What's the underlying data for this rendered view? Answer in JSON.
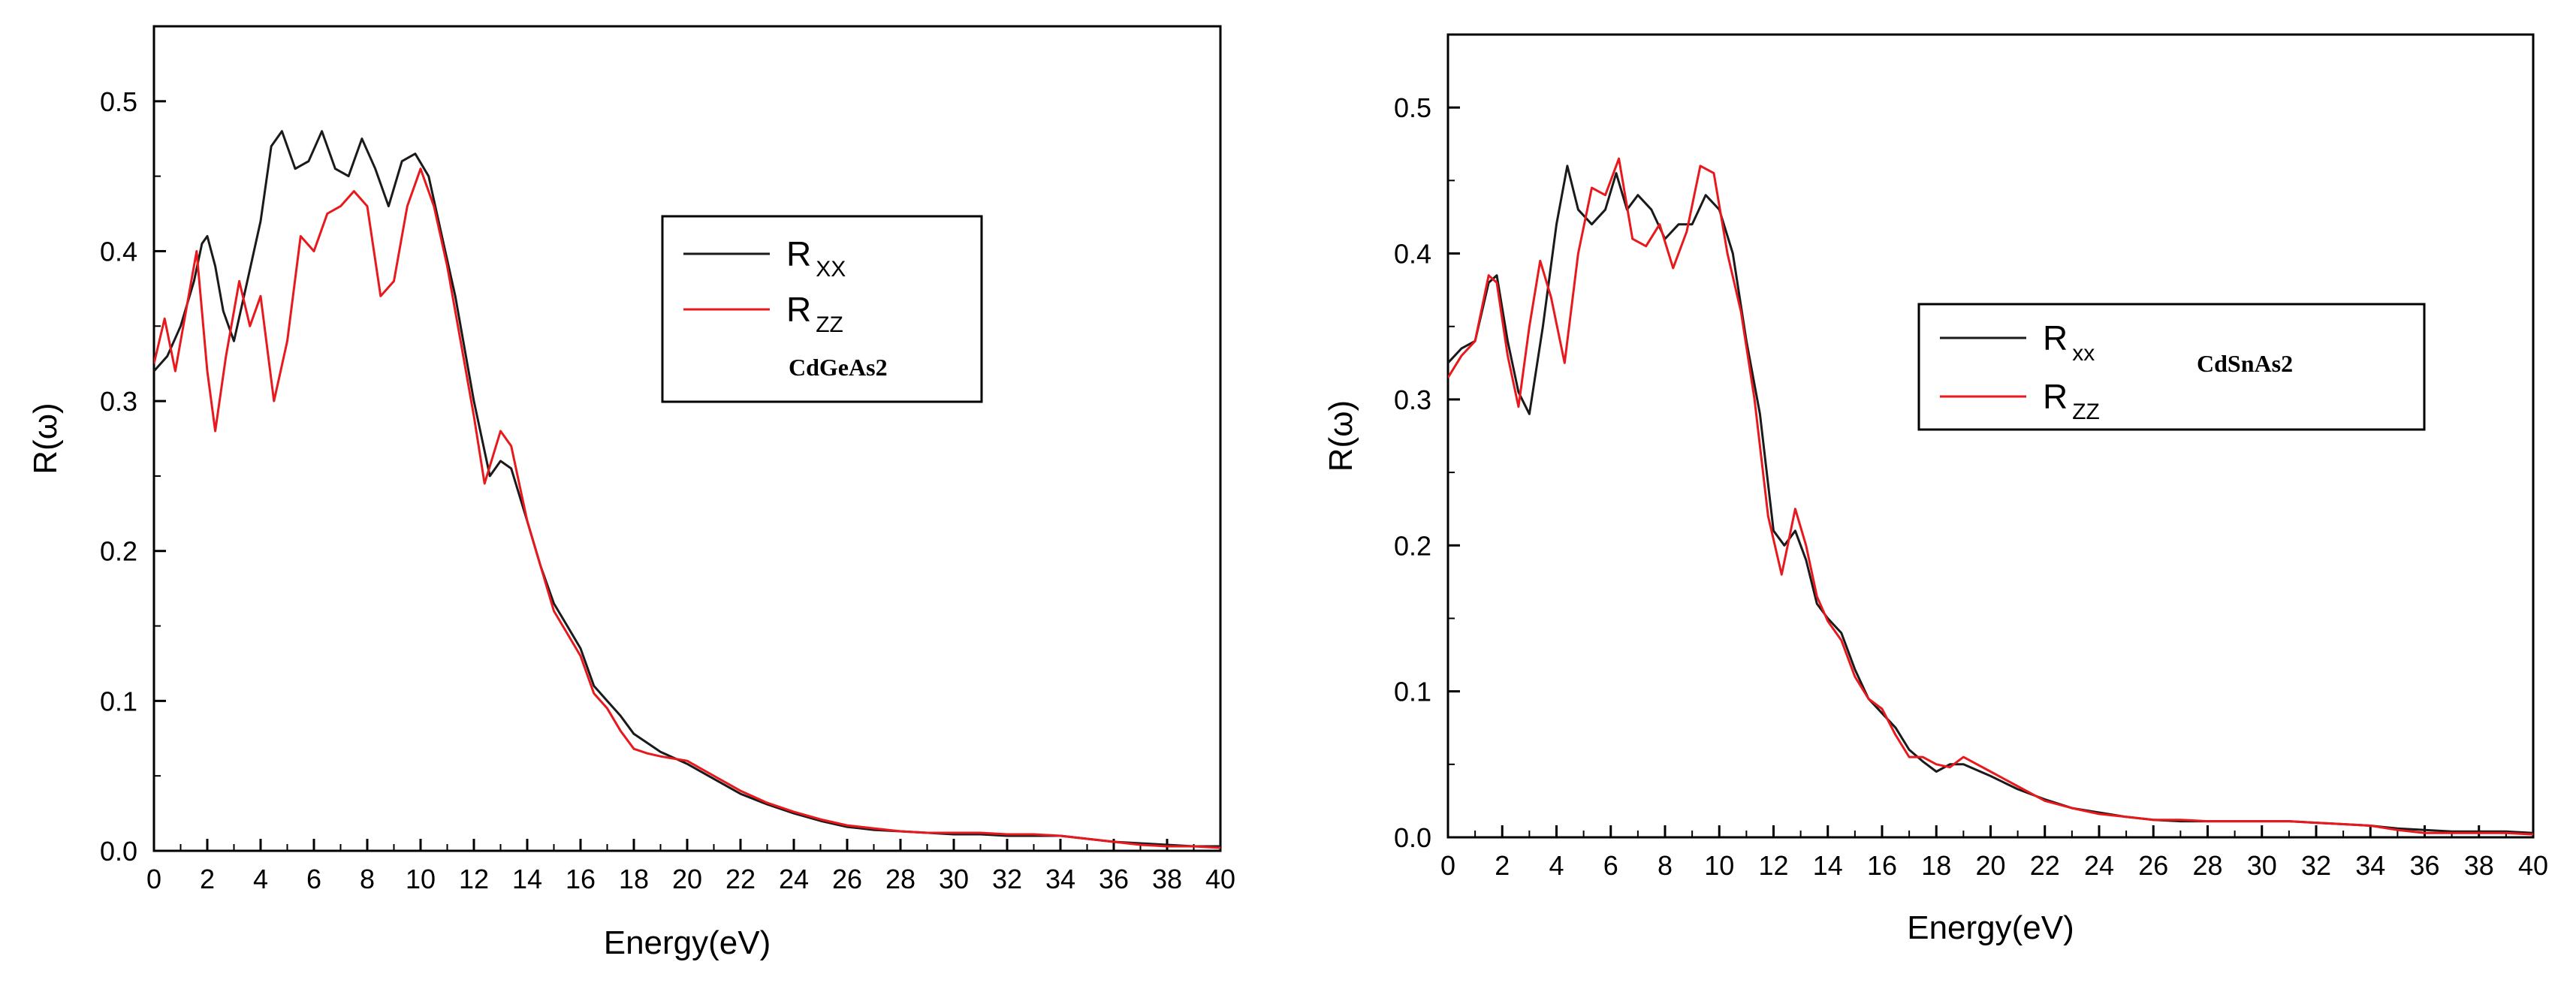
{
  "chart_data": [
    {
      "type": "line",
      "xlabel": "Energy(eV)",
      "ylabel": "R(ω)",
      "xlim": [
        0,
        40
      ],
      "ylim": [
        0,
        0.55
      ],
      "x_ticks": [
        0,
        2,
        4,
        6,
        8,
        10,
        12,
        14,
        16,
        18,
        20,
        22,
        24,
        26,
        28,
        30,
        32,
        34,
        36,
        38,
        40
      ],
      "y_ticks": [
        0.0,
        0.1,
        0.2,
        0.3,
        0.4,
        0.5
      ],
      "grid": false,
      "legend_position": "upper-right",
      "legend_annotation": "CdGeAs2",
      "series": [
        {
          "name": "R",
          "name_sub": "XX",
          "color": "#1a1a1a",
          "points": [
            [
              0,
              0.32
            ],
            [
              0.5,
              0.33
            ],
            [
              1,
              0.35
            ],
            [
              1.5,
              0.38
            ],
            [
              1.8,
              0.405
            ],
            [
              2,
              0.41
            ],
            [
              2.3,
              0.39
            ],
            [
              2.6,
              0.36
            ],
            [
              3,
              0.34
            ],
            [
              3.5,
              0.38
            ],
            [
              4,
              0.42
            ],
            [
              4.4,
              0.47
            ],
            [
              4.8,
              0.48
            ],
            [
              5.3,
              0.455
            ],
            [
              5.8,
              0.46
            ],
            [
              6.3,
              0.48
            ],
            [
              6.8,
              0.455
            ],
            [
              7.3,
              0.45
            ],
            [
              7.8,
              0.475
            ],
            [
              8.3,
              0.455
            ],
            [
              8.8,
              0.43
            ],
            [
              9.3,
              0.46
            ],
            [
              9.8,
              0.465
            ],
            [
              10.3,
              0.45
            ],
            [
              10.8,
              0.41
            ],
            [
              11.3,
              0.37
            ],
            [
              12,
              0.3
            ],
            [
              12.6,
              0.25
            ],
            [
              13,
              0.26
            ],
            [
              13.4,
              0.255
            ],
            [
              14,
              0.22
            ],
            [
              14.5,
              0.19
            ],
            [
              15,
              0.165
            ],
            [
              15.5,
              0.15
            ],
            [
              16,
              0.135
            ],
            [
              16.5,
              0.11
            ],
            [
              17,
              0.1
            ],
            [
              17.5,
              0.09
            ],
            [
              18,
              0.078
            ],
            [
              18.5,
              0.072
            ],
            [
              19,
              0.066
            ],
            [
              20,
              0.058
            ],
            [
              21,
              0.048
            ],
            [
              22,
              0.038
            ],
            [
              23,
              0.031
            ],
            [
              24,
              0.025
            ],
            [
              25,
              0.02
            ],
            [
              26,
              0.016
            ],
            [
              27,
              0.014
            ],
            [
              28,
              0.013
            ],
            [
              29,
              0.012
            ],
            [
              30,
              0.011
            ],
            [
              31,
              0.011
            ],
            [
              32,
              0.01
            ],
            [
              33,
              0.01
            ],
            [
              34,
              0.01
            ],
            [
              35,
              0.008
            ],
            [
              36,
              0.006
            ],
            [
              37,
              0.005
            ],
            [
              38,
              0.004
            ],
            [
              39,
              0.003
            ],
            [
              40,
              0.003
            ]
          ]
        },
        {
          "name": "R",
          "name_sub": "ZZ",
          "color": "#e8191d",
          "points": [
            [
              0,
              0.325
            ],
            [
              0.4,
              0.355
            ],
            [
              0.8,
              0.32
            ],
            [
              1.2,
              0.36
            ],
            [
              1.6,
              0.4
            ],
            [
              2,
              0.32
            ],
            [
              2.3,
              0.28
            ],
            [
              2.7,
              0.33
            ],
            [
              3.2,
              0.38
            ],
            [
              3.6,
              0.35
            ],
            [
              4,
              0.37
            ],
            [
              4.5,
              0.3
            ],
            [
              5,
              0.34
            ],
            [
              5.5,
              0.41
            ],
            [
              6,
              0.4
            ],
            [
              6.5,
              0.425
            ],
            [
              7,
              0.43
            ],
            [
              7.5,
              0.44
            ],
            [
              8,
              0.43
            ],
            [
              8.5,
              0.37
            ],
            [
              9,
              0.38
            ],
            [
              9.5,
              0.43
            ],
            [
              10,
              0.455
            ],
            [
              10.5,
              0.43
            ],
            [
              11,
              0.39
            ],
            [
              11.5,
              0.34
            ],
            [
              12,
              0.29
            ],
            [
              12.4,
              0.245
            ],
            [
              13,
              0.28
            ],
            [
              13.4,
              0.27
            ],
            [
              14,
              0.22
            ],
            [
              14.5,
              0.19
            ],
            [
              15,
              0.16
            ],
            [
              15.5,
              0.145
            ],
            [
              16,
              0.13
            ],
            [
              16.5,
              0.105
            ],
            [
              17,
              0.095
            ],
            [
              17.5,
              0.08
            ],
            [
              18,
              0.068
            ],
            [
              18.5,
              0.065
            ],
            [
              19,
              0.063
            ],
            [
              20,
              0.06
            ],
            [
              21,
              0.05
            ],
            [
              22,
              0.04
            ],
            [
              23,
              0.032
            ],
            [
              24,
              0.026
            ],
            [
              25,
              0.021
            ],
            [
              26,
              0.017
            ],
            [
              27,
              0.015
            ],
            [
              28,
              0.013
            ],
            [
              29,
              0.012
            ],
            [
              30,
              0.012
            ],
            [
              31,
              0.012
            ],
            [
              32,
              0.011
            ],
            [
              33,
              0.011
            ],
            [
              34,
              0.01
            ],
            [
              35,
              0.008
            ],
            [
              36,
              0.006
            ],
            [
              37,
              0.004
            ],
            [
              38,
              0.003
            ],
            [
              39,
              0.003
            ],
            [
              40,
              0.002
            ]
          ]
        }
      ]
    },
    {
      "type": "line",
      "xlabel": "Energy(eV)",
      "ylabel": "R(ω)",
      "xlim": [
        0,
        40
      ],
      "ylim": [
        0,
        0.55
      ],
      "x_ticks": [
        0,
        2,
        4,
        6,
        8,
        10,
        12,
        14,
        16,
        18,
        20,
        22,
        24,
        26,
        28,
        30,
        32,
        34,
        36,
        38,
        40
      ],
      "y_ticks": [
        0.0,
        0.1,
        0.2,
        0.3,
        0.4,
        0.5
      ],
      "grid": false,
      "legend_position": "right",
      "legend_annotation": "CdSnAs2",
      "series": [
        {
          "name": "R",
          "name_sub": "xx",
          "color": "#1a1a1a",
          "points": [
            [
              0,
              0.325
            ],
            [
              0.5,
              0.335
            ],
            [
              1,
              0.34
            ],
            [
              1.5,
              0.38
            ],
            [
              1.8,
              0.385
            ],
            [
              2.2,
              0.34
            ],
            [
              2.6,
              0.305
            ],
            [
              3,
              0.29
            ],
            [
              3.5,
              0.35
            ],
            [
              4,
              0.42
            ],
            [
              4.4,
              0.46
            ],
            [
              4.8,
              0.43
            ],
            [
              5.3,
              0.42
            ],
            [
              5.8,
              0.43
            ],
            [
              6.2,
              0.455
            ],
            [
              6.6,
              0.43
            ],
            [
              7,
              0.44
            ],
            [
              7.5,
              0.43
            ],
            [
              8,
              0.41
            ],
            [
              8.5,
              0.42
            ],
            [
              9,
              0.42
            ],
            [
              9.5,
              0.44
            ],
            [
              10,
              0.43
            ],
            [
              10.5,
              0.4
            ],
            [
              11,
              0.34
            ],
            [
              11.5,
              0.29
            ],
            [
              12,
              0.21
            ],
            [
              12.4,
              0.2
            ],
            [
              12.8,
              0.21
            ],
            [
              13.2,
              0.19
            ],
            [
              13.6,
              0.16
            ],
            [
              14,
              0.15
            ],
            [
              14.5,
              0.14
            ],
            [
              15,
              0.115
            ],
            [
              15.5,
              0.095
            ],
            [
              16,
              0.085
            ],
            [
              16.5,
              0.075
            ],
            [
              17,
              0.06
            ],
            [
              17.5,
              0.052
            ],
            [
              18,
              0.045
            ],
            [
              18.5,
              0.05
            ],
            [
              19,
              0.05
            ],
            [
              20,
              0.042
            ],
            [
              21,
              0.033
            ],
            [
              22,
              0.026
            ],
            [
              23,
              0.02
            ],
            [
              24,
              0.017
            ],
            [
              25,
              0.014
            ],
            [
              26,
              0.012
            ],
            [
              27,
              0.011
            ],
            [
              28,
              0.011
            ],
            [
              29,
              0.011
            ],
            [
              30,
              0.011
            ],
            [
              31,
              0.011
            ],
            [
              32,
              0.01
            ],
            [
              33,
              0.009
            ],
            [
              34,
              0.008
            ],
            [
              35,
              0.006
            ],
            [
              36,
              0.005
            ],
            [
              37,
              0.004
            ],
            [
              38,
              0.004
            ],
            [
              39,
              0.004
            ],
            [
              40,
              0.003
            ]
          ]
        },
        {
          "name": "R",
          "name_sub": "ZZ",
          "color": "#e8191d",
          "points": [
            [
              0,
              0.315
            ],
            [
              0.5,
              0.33
            ],
            [
              1,
              0.34
            ],
            [
              1.5,
              0.385
            ],
            [
              1.8,
              0.38
            ],
            [
              2.2,
              0.33
            ],
            [
              2.6,
              0.295
            ],
            [
              3,
              0.35
            ],
            [
              3.4,
              0.395
            ],
            [
              3.8,
              0.37
            ],
            [
              4.3,
              0.325
            ],
            [
              4.8,
              0.4
            ],
            [
              5.3,
              0.445
            ],
            [
              5.8,
              0.44
            ],
            [
              6.3,
              0.465
            ],
            [
              6.8,
              0.41
            ],
            [
              7.3,
              0.405
            ],
            [
              7.8,
              0.42
            ],
            [
              8.3,
              0.39
            ],
            [
              8.8,
              0.415
            ],
            [
              9.3,
              0.46
            ],
            [
              9.8,
              0.455
            ],
            [
              10.3,
              0.4
            ],
            [
              10.8,
              0.36
            ],
            [
              11.3,
              0.3
            ],
            [
              11.8,
              0.22
            ],
            [
              12.3,
              0.18
            ],
            [
              12.8,
              0.225
            ],
            [
              13.2,
              0.2
            ],
            [
              13.6,
              0.165
            ],
            [
              14,
              0.148
            ],
            [
              14.5,
              0.135
            ],
            [
              15,
              0.11
            ],
            [
              15.5,
              0.095
            ],
            [
              16,
              0.088
            ],
            [
              16.5,
              0.07
            ],
            [
              17,
              0.055
            ],
            [
              17.5,
              0.055
            ],
            [
              18,
              0.05
            ],
            [
              18.5,
              0.048
            ],
            [
              19,
              0.055
            ],
            [
              20,
              0.045
            ],
            [
              21,
              0.035
            ],
            [
              22,
              0.025
            ],
            [
              23,
              0.02
            ],
            [
              24,
              0.016
            ],
            [
              25,
              0.014
            ],
            [
              26,
              0.012
            ],
            [
              27,
              0.012
            ],
            [
              28,
              0.011
            ],
            [
              29,
              0.011
            ],
            [
              30,
              0.011
            ],
            [
              31,
              0.011
            ],
            [
              32,
              0.01
            ],
            [
              33,
              0.009
            ],
            [
              34,
              0.008
            ],
            [
              35,
              0.005
            ],
            [
              36,
              0.003
            ],
            [
              37,
              0.003
            ],
            [
              38,
              0.003
            ],
            [
              39,
              0.003
            ],
            [
              40,
              0.002
            ]
          ]
        }
      ]
    }
  ]
}
